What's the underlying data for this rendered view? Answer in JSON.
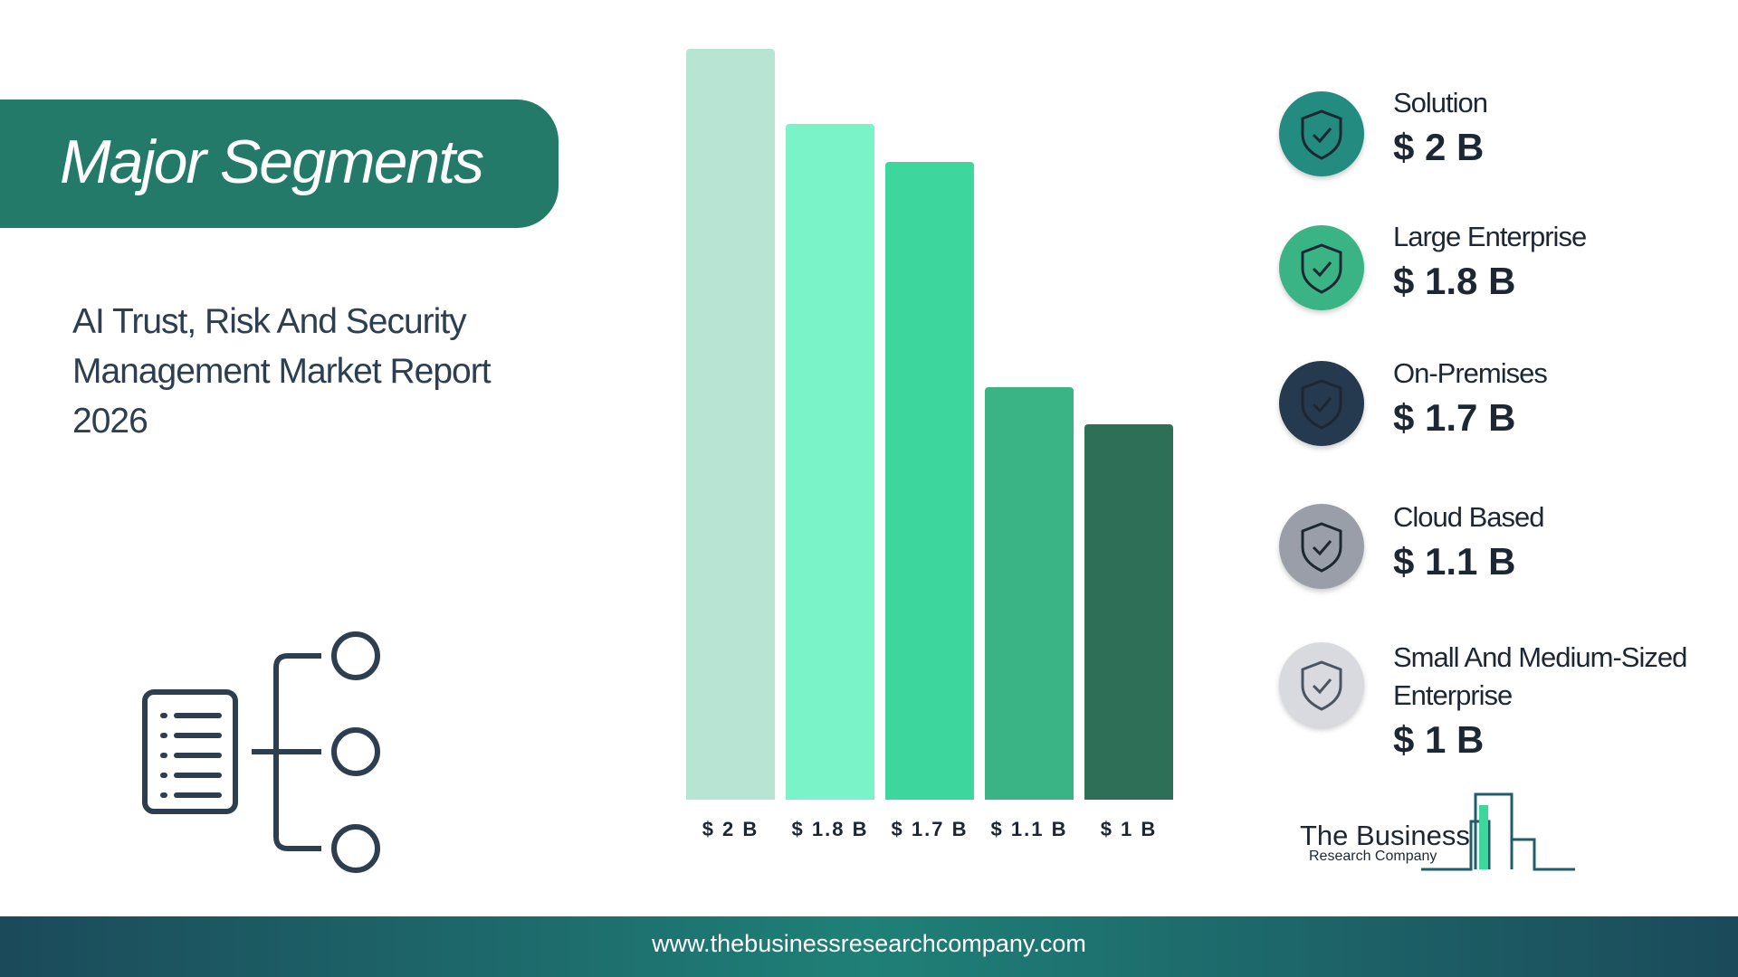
{
  "title": "Major Segments",
  "subtitle": "AI Trust, Risk And Security Management Market Report 2026",
  "chart_data": {
    "type": "bar",
    "categories": [
      "Solution",
      "Large Enterprise",
      "On-Premises",
      "Cloud Based",
      "Small And Medium-Sized Enterprise"
    ],
    "values": [
      2,
      1.8,
      1.7,
      1.1,
      1
    ],
    "value_labels": [
      "$ 2 B",
      "$ 1.8 B",
      "$ 1.7 B",
      "$ 1.1 B",
      "$ 1 B"
    ],
    "colors": [
      "#b8e4d4",
      "#79f3c7",
      "#3dd69c",
      "#3bb485",
      "#2e6f58"
    ]
  },
  "logo": {
    "line1": "The Business",
    "line2": "Research Company"
  },
  "footer": "www.thebusinessresearchcompany.com"
}
